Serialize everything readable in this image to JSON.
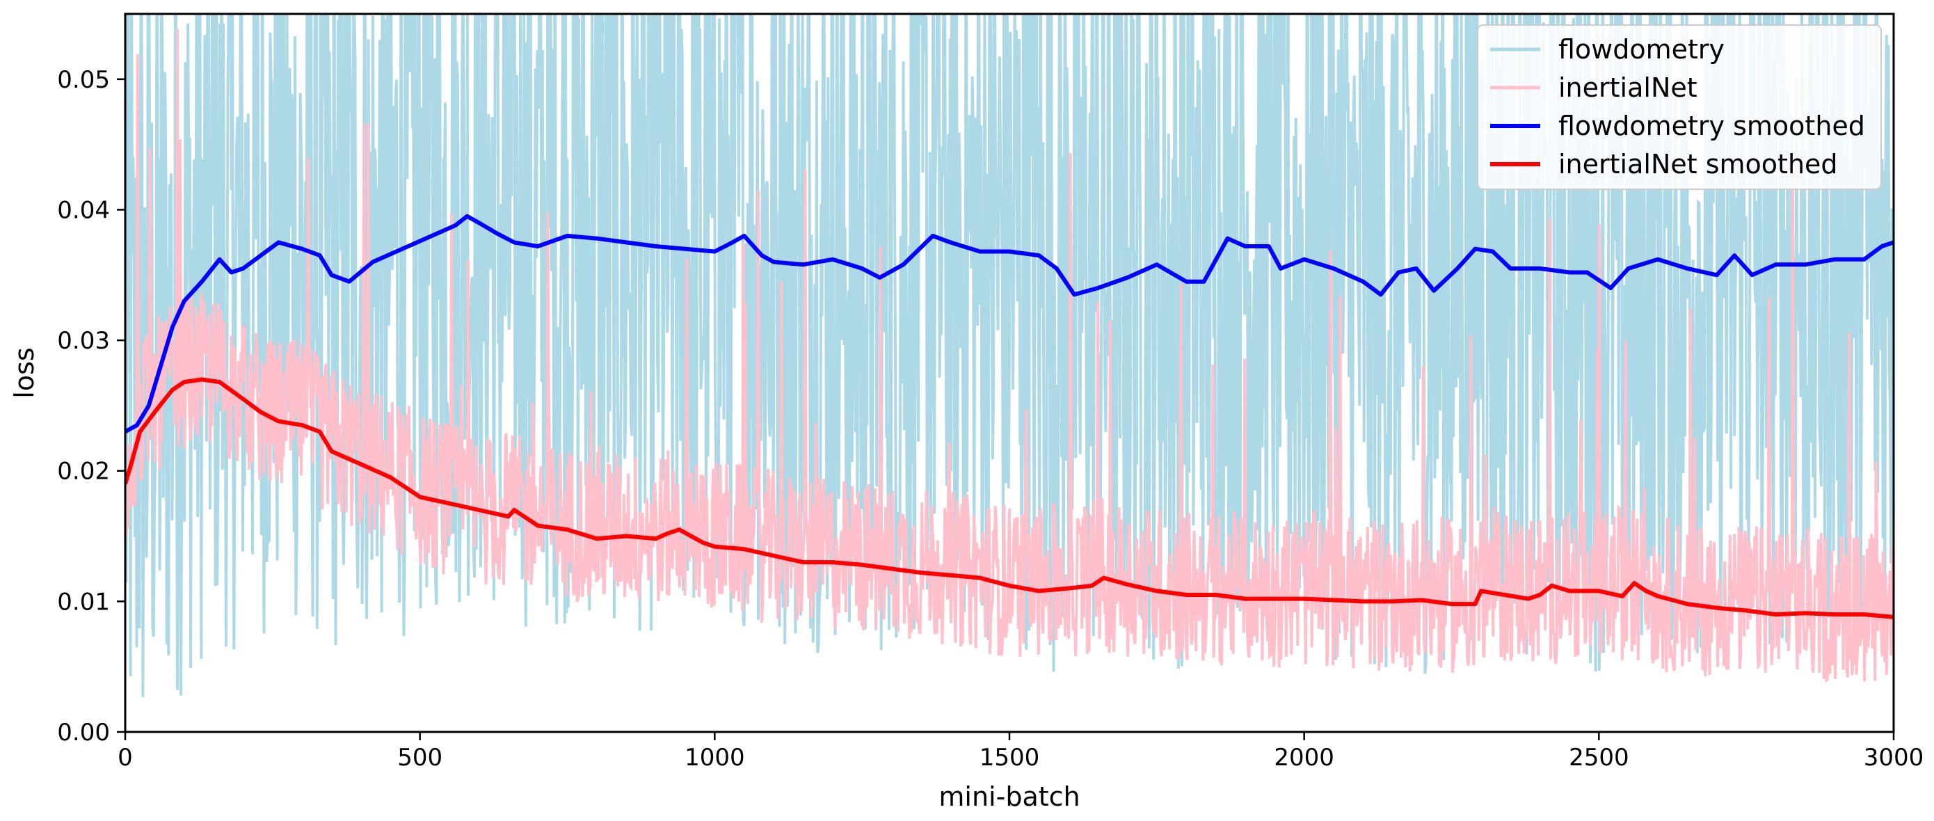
{
  "chart_data": {
    "type": "line",
    "title": "",
    "xlabel": "mini-batch",
    "ylabel": "loss",
    "xlim": [
      0,
      3000
    ],
    "ylim": [
      0,
      0.055
    ],
    "xticks": [
      0,
      500,
      1000,
      1500,
      2000,
      2500,
      3000
    ],
    "xtick_labels": [
      "0",
      "500",
      "1000",
      "1500",
      "2000",
      "2500",
      "3000"
    ],
    "yticks": [
      0,
      0.01,
      0.02,
      0.03,
      0.04,
      0.05
    ],
    "ytick_labels": [
      "0.00",
      "0.01",
      "0.02",
      "0.03",
      "0.04",
      "0.05"
    ],
    "grid": false,
    "legend_position": "top-right",
    "series": [
      {
        "name": "flowdometry",
        "color": "#add8e6",
        "kind": "noisy",
        "points": [
          [
            0,
            0.023
          ],
          [
            50,
            0.028
          ],
          [
            100,
            0.033
          ],
          [
            150,
            0.036
          ],
          [
            200,
            0.036
          ],
          [
            250,
            0.0375
          ],
          [
            300,
            0.037
          ],
          [
            350,
            0.035
          ],
          [
            400,
            0.036
          ],
          [
            500,
            0.0375
          ],
          [
            580,
            0.0395
          ],
          [
            650,
            0.0375
          ],
          [
            750,
            0.038
          ],
          [
            900,
            0.037
          ],
          [
            1000,
            0.037
          ],
          [
            1050,
            0.038
          ],
          [
            1100,
            0.036
          ],
          [
            1200,
            0.036
          ],
          [
            1280,
            0.035
          ],
          [
            1370,
            0.038
          ],
          [
            1450,
            0.0365
          ],
          [
            1520,
            0.0365
          ],
          [
            1600,
            0.0335
          ],
          [
            1700,
            0.0355
          ],
          [
            1800,
            0.0345
          ],
          [
            1870,
            0.0375
          ],
          [
            1930,
            0.037
          ],
          [
            1960,
            0.0355
          ],
          [
            2050,
            0.0355
          ],
          [
            2130,
            0.0335
          ],
          [
            2170,
            0.0355
          ],
          [
            2210,
            0.034
          ],
          [
            2280,
            0.037
          ],
          [
            2330,
            0.0355
          ],
          [
            2400,
            0.035
          ],
          [
            2450,
            0.0355
          ],
          [
            2520,
            0.034
          ],
          [
            2580,
            0.0355
          ],
          [
            2650,
            0.0355
          ],
          [
            2700,
            0.035
          ],
          [
            2720,
            0.0365
          ],
          [
            2760,
            0.0355
          ],
          [
            2850,
            0.036
          ],
          [
            2950,
            0.0365
          ],
          [
            3000,
            0.0375
          ]
        ],
        "noise_amplitude": 0.03
      },
      {
        "name": "inertialNet",
        "color": "#ffc0cb",
        "kind": "noisy",
        "points": [
          [
            0,
            0.019
          ],
          [
            20,
            0.023
          ],
          [
            50,
            0.025
          ],
          [
            100,
            0.027
          ],
          [
            150,
            0.027
          ],
          [
            200,
            0.025
          ],
          [
            250,
            0.0235
          ],
          [
            300,
            0.0235
          ],
          [
            350,
            0.0215
          ],
          [
            400,
            0.0205
          ],
          [
            500,
            0.018
          ],
          [
            600,
            0.0165
          ],
          [
            700,
            0.016
          ],
          [
            800,
            0.015
          ],
          [
            900,
            0.015
          ],
          [
            950,
            0.015
          ],
          [
            1000,
            0.0145
          ],
          [
            1100,
            0.0135
          ],
          [
            1200,
            0.013
          ],
          [
            1300,
            0.0125
          ],
          [
            1400,
            0.012
          ],
          [
            1500,
            0.011
          ],
          [
            1600,
            0.011
          ],
          [
            1650,
            0.0115
          ],
          [
            1800,
            0.0105
          ],
          [
            1900,
            0.0103
          ],
          [
            2000,
            0.0103
          ],
          [
            2100,
            0.01
          ],
          [
            2200,
            0.01
          ],
          [
            2280,
            0.0098
          ],
          [
            2300,
            0.0108
          ],
          [
            2400,
            0.0103
          ],
          [
            2450,
            0.0108
          ],
          [
            2500,
            0.0105
          ],
          [
            2560,
            0.011
          ],
          [
            2600,
            0.01
          ],
          [
            2700,
            0.0095
          ],
          [
            2800,
            0.0092
          ],
          [
            2900,
            0.0091
          ],
          [
            3000,
            0.0088
          ]
        ],
        "noise_amplitude": 0.012
      },
      {
        "name": "flowdometry smoothed",
        "color": "#0000ff",
        "kind": "smooth",
        "points": [
          [
            0,
            0.023
          ],
          [
            20,
            0.0235
          ],
          [
            40,
            0.025
          ],
          [
            60,
            0.028
          ],
          [
            80,
            0.031
          ],
          [
            100,
            0.033
          ],
          [
            130,
            0.0345
          ],
          [
            160,
            0.0362
          ],
          [
            180,
            0.0352
          ],
          [
            200,
            0.0355
          ],
          [
            230,
            0.0365
          ],
          [
            260,
            0.0375
          ],
          [
            300,
            0.037
          ],
          [
            330,
            0.0365
          ],
          [
            350,
            0.035
          ],
          [
            380,
            0.0345
          ],
          [
            420,
            0.036
          ],
          [
            470,
            0.037
          ],
          [
            520,
            0.038
          ],
          [
            560,
            0.0388
          ],
          [
            580,
            0.0395
          ],
          [
            600,
            0.039
          ],
          [
            630,
            0.0382
          ],
          [
            660,
            0.0375
          ],
          [
            700,
            0.0372
          ],
          [
            750,
            0.038
          ],
          [
            800,
            0.0378
          ],
          [
            850,
            0.0375
          ],
          [
            900,
            0.0372
          ],
          [
            950,
            0.037
          ],
          [
            1000,
            0.0368
          ],
          [
            1030,
            0.0375
          ],
          [
            1050,
            0.038
          ],
          [
            1080,
            0.0365
          ],
          [
            1100,
            0.036
          ],
          [
            1150,
            0.0358
          ],
          [
            1200,
            0.0362
          ],
          [
            1250,
            0.0355
          ],
          [
            1280,
            0.0348
          ],
          [
            1320,
            0.0358
          ],
          [
            1370,
            0.038
          ],
          [
            1400,
            0.0375
          ],
          [
            1450,
            0.0368
          ],
          [
            1500,
            0.0368
          ],
          [
            1550,
            0.0365
          ],
          [
            1580,
            0.0355
          ],
          [
            1610,
            0.0335
          ],
          [
            1650,
            0.034
          ],
          [
            1700,
            0.0348
          ],
          [
            1750,
            0.0358
          ],
          [
            1800,
            0.0345
          ],
          [
            1830,
            0.0345
          ],
          [
            1870,
            0.0378
          ],
          [
            1900,
            0.0372
          ],
          [
            1940,
            0.0372
          ],
          [
            1960,
            0.0355
          ],
          [
            2000,
            0.0362
          ],
          [
            2050,
            0.0355
          ],
          [
            2100,
            0.0345
          ],
          [
            2130,
            0.0335
          ],
          [
            2160,
            0.0352
          ],
          [
            2190,
            0.0355
          ],
          [
            2220,
            0.0338
          ],
          [
            2260,
            0.0355
          ],
          [
            2290,
            0.037
          ],
          [
            2320,
            0.0368
          ],
          [
            2350,
            0.0355
          ],
          [
            2400,
            0.0355
          ],
          [
            2450,
            0.0352
          ],
          [
            2480,
            0.0352
          ],
          [
            2520,
            0.034
          ],
          [
            2550,
            0.0355
          ],
          [
            2600,
            0.0362
          ],
          [
            2650,
            0.0355
          ],
          [
            2700,
            0.035
          ],
          [
            2730,
            0.0365
          ],
          [
            2760,
            0.035
          ],
          [
            2800,
            0.0358
          ],
          [
            2850,
            0.0358
          ],
          [
            2900,
            0.0362
          ],
          [
            2950,
            0.0362
          ],
          [
            2980,
            0.0372
          ],
          [
            3000,
            0.0375
          ]
        ]
      },
      {
        "name": "inertialNet smoothed",
        "color": "#ff0000",
        "kind": "smooth",
        "points": [
          [
            0,
            0.019
          ],
          [
            10,
            0.0205
          ],
          [
            25,
            0.023
          ],
          [
            50,
            0.0245
          ],
          [
            80,
            0.0262
          ],
          [
            100,
            0.0268
          ],
          [
            130,
            0.027
          ],
          [
            160,
            0.0268
          ],
          [
            200,
            0.0255
          ],
          [
            230,
            0.0245
          ],
          [
            260,
            0.0238
          ],
          [
            300,
            0.0235
          ],
          [
            330,
            0.023
          ],
          [
            350,
            0.0215
          ],
          [
            400,
            0.0205
          ],
          [
            450,
            0.0195
          ],
          [
            500,
            0.018
          ],
          [
            550,
            0.0175
          ],
          [
            600,
            0.017
          ],
          [
            650,
            0.0165
          ],
          [
            660,
            0.017
          ],
          [
            700,
            0.0158
          ],
          [
            750,
            0.0155
          ],
          [
            800,
            0.0148
          ],
          [
            850,
            0.015
          ],
          [
            900,
            0.0148
          ],
          [
            920,
            0.0152
          ],
          [
            940,
            0.0155
          ],
          [
            980,
            0.0145
          ],
          [
            1000,
            0.0142
          ],
          [
            1050,
            0.014
          ],
          [
            1100,
            0.0135
          ],
          [
            1150,
            0.013
          ],
          [
            1200,
            0.013
          ],
          [
            1250,
            0.0128
          ],
          [
            1300,
            0.0125
          ],
          [
            1350,
            0.0122
          ],
          [
            1400,
            0.012
          ],
          [
            1450,
            0.0118
          ],
          [
            1500,
            0.0112
          ],
          [
            1550,
            0.0108
          ],
          [
            1600,
            0.011
          ],
          [
            1640,
            0.0112
          ],
          [
            1660,
            0.0118
          ],
          [
            1700,
            0.0113
          ],
          [
            1750,
            0.0108
          ],
          [
            1800,
            0.0105
          ],
          [
            1850,
            0.0105
          ],
          [
            1900,
            0.0102
          ],
          [
            1950,
            0.0102
          ],
          [
            2000,
            0.0102
          ],
          [
            2050,
            0.0101
          ],
          [
            2100,
            0.01
          ],
          [
            2150,
            0.01
          ],
          [
            2200,
            0.0101
          ],
          [
            2250,
            0.0098
          ],
          [
            2290,
            0.0098
          ],
          [
            2300,
            0.0108
          ],
          [
            2340,
            0.0105
          ],
          [
            2380,
            0.0102
          ],
          [
            2400,
            0.0105
          ],
          [
            2420,
            0.0112
          ],
          [
            2450,
            0.0108
          ],
          [
            2500,
            0.0108
          ],
          [
            2540,
            0.0104
          ],
          [
            2560,
            0.0114
          ],
          [
            2580,
            0.0108
          ],
          [
            2600,
            0.0104
          ],
          [
            2650,
            0.0098
          ],
          [
            2700,
            0.0095
          ],
          [
            2750,
            0.0093
          ],
          [
            2800,
            0.009
          ],
          [
            2850,
            0.0091
          ],
          [
            2900,
            0.009
          ],
          [
            2950,
            0.009
          ],
          [
            3000,
            0.0088
          ]
        ]
      }
    ]
  }
}
